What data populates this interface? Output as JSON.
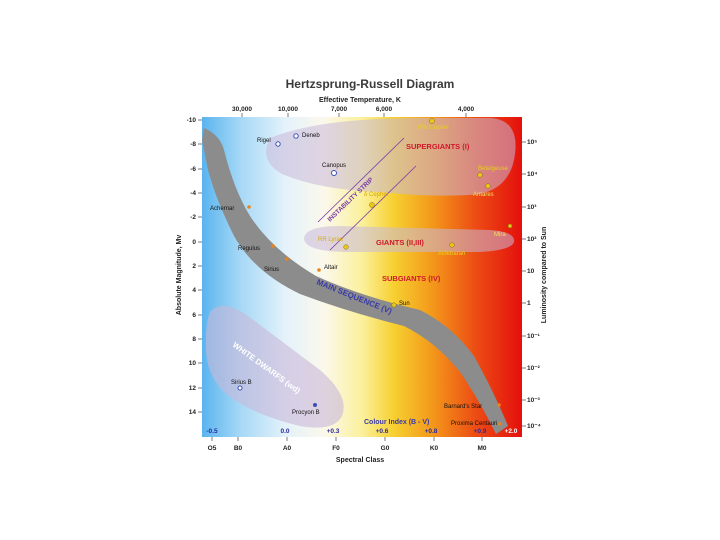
{
  "title": "Hertzsprung-Russell Diagram",
  "top_axis": {
    "label": "Effective Temperature, K",
    "ticks": [
      "30,000",
      "10,000",
      "7,000",
      "6,000",
      "4,000"
    ]
  },
  "left_axis": {
    "label": "Absolute Magnitude, Mv",
    "ticks": [
      "-10",
      "-8",
      "-6",
      "-4",
      "-2",
      "0",
      "2",
      "4",
      "6",
      "8",
      "10",
      "12",
      "14"
    ]
  },
  "right_axis": {
    "label": "Luminosity compared to Sun",
    "ticks": [
      "10⁵",
      "10⁴",
      "10³",
      "10²",
      "10",
      "1",
      "10⁻¹",
      "10⁻²",
      "10⁻³",
      "10⁻⁴"
    ]
  },
  "bottom_axis": {
    "label": "Spectral Class",
    "ticks": [
      "O5",
      "B0",
      "A0",
      "F0",
      "G0",
      "K0",
      "M0"
    ]
  },
  "colour_index": {
    "label": "Colour Index (B - V)",
    "values": [
      "-0.5",
      "0.0",
      "+0.3",
      "+0.6",
      "+0.8",
      "+0.9",
      "+2.0"
    ]
  },
  "regions": {
    "supergiants": "SUPERGIANTS (I)",
    "giants": "GIANTS (II,III)",
    "subgiants": "SUBGIANTS (IV)",
    "main_sequence": "MAIN SEQUENCE (V)",
    "white_dwarfs": "WHITE DWARFS (wd)",
    "instability_strip": "INSTABILITY STRIP"
  },
  "stars": {
    "rigel": "Rigel",
    "deneb": "Deneb",
    "canopus": "Canopus",
    "rw_cephei": "RW Cephei",
    "betelgeuse": "Betelgeuse",
    "antares": "Antares",
    "delta_cephei": "δ Cephei",
    "achernar": "Achernar",
    "rr_lyrae": "RR Lyrae",
    "aldebaran": "Aldebaran",
    "mira": "Mira",
    "regulus": "Regulus",
    "sirius": "Sirius",
    "altair": "Altair",
    "sun": "Sun",
    "sirius_b": "Sirius B",
    "procyon_b": "Procyon B",
    "barnards_star": "Barnard's Star",
    "proxima_centauri": "Proxima Centauri"
  },
  "colors": {
    "main_sequence_band": "#8c8c8c",
    "region_fill": "#c9b8d8",
    "star_orange": "#e8851a",
    "star_yellow": "#e8c81a",
    "star_blue": "#3a4fb8",
    "region_text_red": "#d0182c",
    "region_text_blue": "#3a3aa8",
    "strip_purple": "#7a3aa8"
  }
}
